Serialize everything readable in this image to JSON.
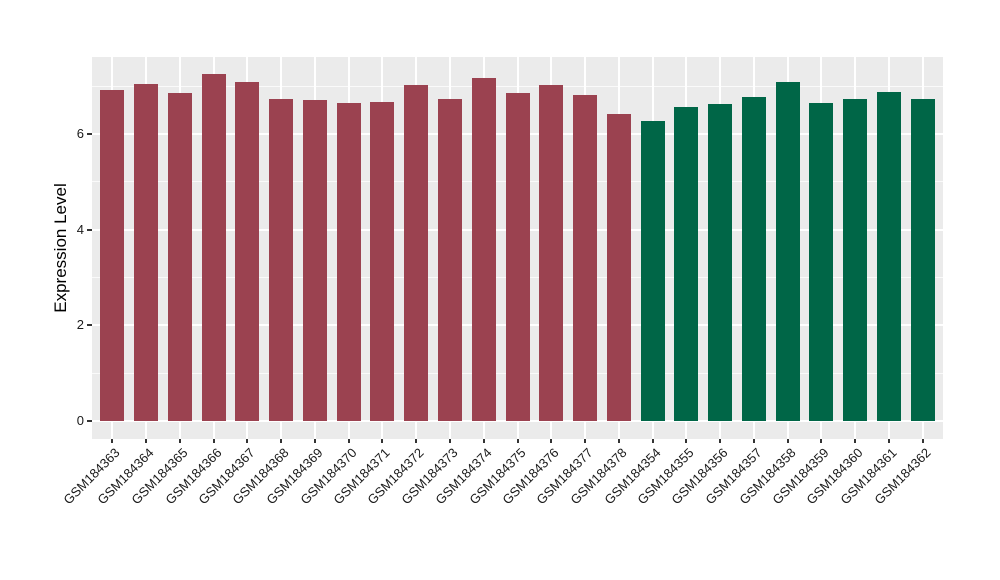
{
  "chart_data": {
    "type": "bar",
    "title": "",
    "xlabel": "",
    "ylabel": "Expression Level",
    "yticks": [
      0,
      2,
      4,
      6
    ],
    "grid_major_y": [
      0,
      2,
      4,
      6
    ],
    "grid_minor_y": [
      1,
      3,
      5,
      7
    ],
    "ylim": [
      -0.36,
      7.61
    ],
    "legend": "none",
    "panel_bg": "#EBEBEB",
    "gridline_color": "#ffffff",
    "group_colors": {
      "left_group": "#9B4250",
      "right_group": "#006647"
    },
    "bars": [
      {
        "label": "GSM184363",
        "value": 6.92,
        "color": "#9B4250"
      },
      {
        "label": "GSM184364",
        "value": 7.04,
        "color": "#9B4250"
      },
      {
        "label": "GSM184365",
        "value": 6.86,
        "color": "#9B4250"
      },
      {
        "label": "GSM184366",
        "value": 7.25,
        "color": "#9B4250"
      },
      {
        "label": "GSM184367",
        "value": 7.09,
        "color": "#9B4250"
      },
      {
        "label": "GSM184368",
        "value": 6.72,
        "color": "#9B4250"
      },
      {
        "label": "GSM184369",
        "value": 6.71,
        "color": "#9B4250"
      },
      {
        "label": "GSM184370",
        "value": 6.64,
        "color": "#9B4250"
      },
      {
        "label": "GSM184371",
        "value": 6.67,
        "color": "#9B4250"
      },
      {
        "label": "GSM184372",
        "value": 7.02,
        "color": "#9B4250"
      },
      {
        "label": "GSM184373",
        "value": 6.72,
        "color": "#9B4250"
      },
      {
        "label": "GSM184374",
        "value": 7.17,
        "color": "#9B4250"
      },
      {
        "label": "GSM184375",
        "value": 6.85,
        "color": "#9B4250"
      },
      {
        "label": "GSM184376",
        "value": 7.02,
        "color": "#9B4250"
      },
      {
        "label": "GSM184377",
        "value": 6.81,
        "color": "#9B4250"
      },
      {
        "label": "GSM184378",
        "value": 6.42,
        "color": "#9B4250"
      },
      {
        "label": "GSM184354",
        "value": 6.26,
        "color": "#006647"
      },
      {
        "label": "GSM184355",
        "value": 6.56,
        "color": "#006647"
      },
      {
        "label": "GSM184356",
        "value": 6.62,
        "color": "#006647"
      },
      {
        "label": "GSM184357",
        "value": 6.77,
        "color": "#006647"
      },
      {
        "label": "GSM184358",
        "value": 7.08,
        "color": "#006647"
      },
      {
        "label": "GSM184359",
        "value": 6.65,
        "color": "#006647"
      },
      {
        "label": "GSM184360",
        "value": 6.72,
        "color": "#006647"
      },
      {
        "label": "GSM184361",
        "value": 6.88,
        "color": "#006647"
      },
      {
        "label": "GSM184362",
        "value": 6.73,
        "color": "#006647"
      }
    ]
  }
}
